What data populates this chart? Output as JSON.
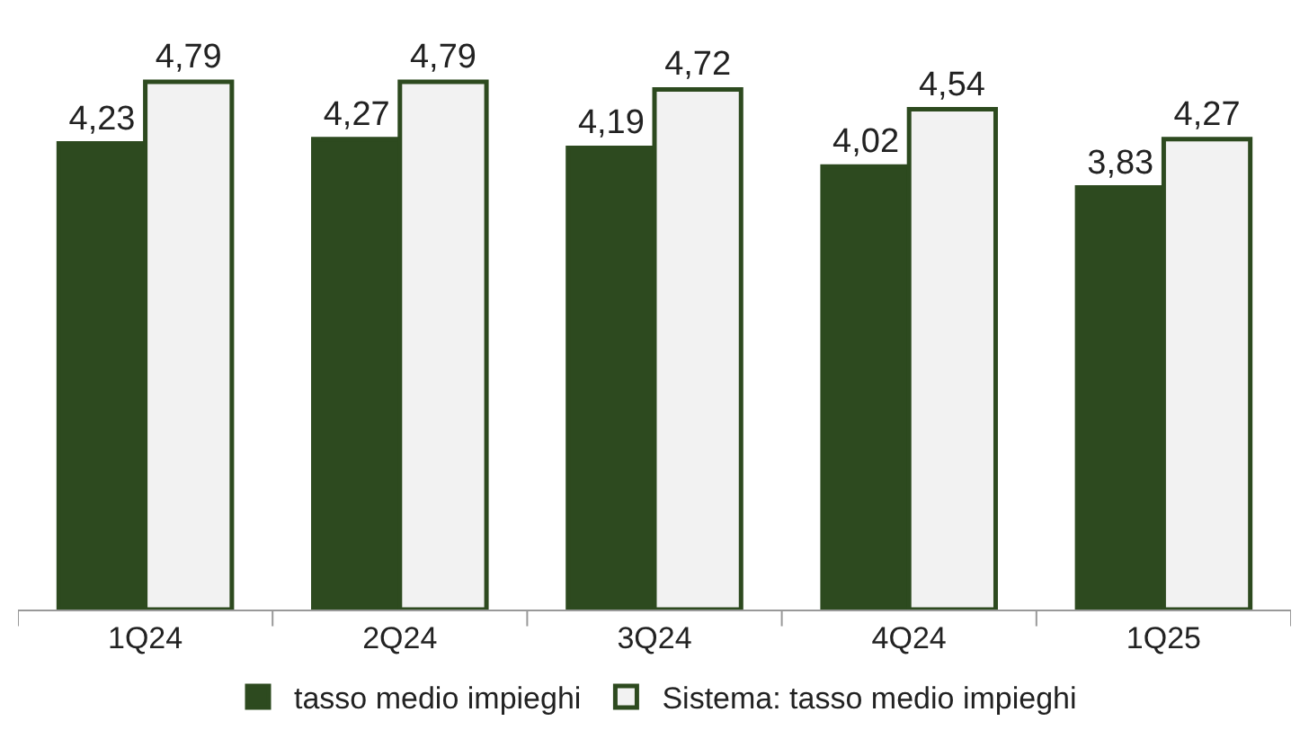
{
  "chart_data": {
    "type": "bar",
    "categories": [
      "1Q24",
      "2Q24",
      "3Q24",
      "4Q24",
      "1Q25"
    ],
    "series": [
      {
        "name": "tasso medio impieghi",
        "color": "#2d4a1f",
        "values": [
          4.23,
          4.27,
          4.19,
          4.02,
          3.83
        ],
        "value_labels": [
          "4,23",
          "4,27",
          "4,19",
          "4,02",
          "3,83"
        ]
      },
      {
        "name": "Sistema: tasso medio impieghi",
        "color": "#f2f2f2",
        "values": [
          4.79,
          4.79,
          4.72,
          4.54,
          4.27
        ],
        "value_labels": [
          "4,79",
          "4,79",
          "4,72",
          "4,54",
          "4,27"
        ]
      }
    ],
    "tick_labels": "x",
    "legend": "bottom"
  }
}
